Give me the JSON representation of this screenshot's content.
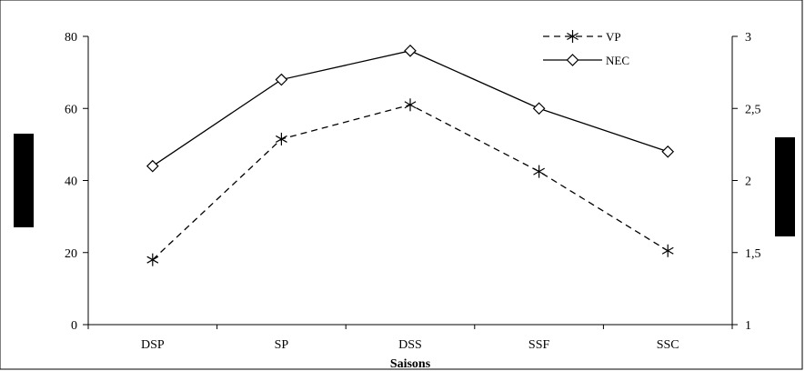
{
  "chart_data": {
    "type": "line",
    "xlabel": "Saisons",
    "categories": [
      "DSP",
      "SP",
      "DSS",
      "SSF",
      "SSC"
    ],
    "y_left": {
      "ylim": [
        0,
        80
      ],
      "ticks": [
        "0",
        "20",
        "40",
        "60",
        "80"
      ]
    },
    "y_right": {
      "ylim": [
        1,
        3
      ],
      "ticks": [
        "1",
        "1,5",
        "2",
        "2,5",
        "3"
      ]
    },
    "series": [
      {
        "name": "VP",
        "axis": "left",
        "values": [
          18,
          51.5,
          61,
          42.5,
          20.5
        ],
        "style": "dashed",
        "marker": "asterisk"
      },
      {
        "name": "NEC",
        "axis": "right",
        "values": [
          2.1,
          2.7,
          2.9,
          2.5,
          2.2
        ],
        "style": "solid",
        "marker": "diamond"
      }
    ],
    "legend_position": "top-right",
    "grid": false
  }
}
